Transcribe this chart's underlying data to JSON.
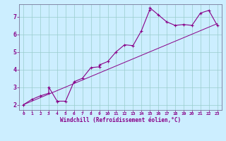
{
  "xlabel": "Windchill (Refroidissement éolien,°C)",
  "background_color": "#cceeff",
  "line_color": "#880088",
  "xlim": [
    -0.5,
    23.5
  ],
  "ylim": [
    1.7,
    7.7
  ],
  "xticks": [
    0,
    1,
    2,
    3,
    4,
    5,
    6,
    7,
    8,
    9,
    10,
    11,
    12,
    13,
    14,
    15,
    16,
    17,
    18,
    19,
    20,
    21,
    22,
    23
  ],
  "yticks": [
    2,
    3,
    4,
    5,
    6,
    7
  ],
  "grid_color": "#99cccc",
  "main_line_x": [
    0,
    1,
    2,
    3,
    3,
    4,
    4,
    5,
    6,
    7,
    8,
    9,
    9,
    10,
    11,
    12,
    13,
    14,
    15,
    15,
    16,
    17,
    18,
    19,
    20,
    21,
    22,
    23
  ],
  "main_line_y": [
    2.0,
    2.3,
    2.5,
    2.65,
    3.0,
    2.2,
    2.2,
    2.2,
    3.3,
    3.5,
    4.1,
    4.15,
    4.25,
    4.45,
    5.0,
    5.4,
    5.35,
    6.2,
    7.4,
    7.5,
    7.1,
    6.7,
    6.5,
    6.55,
    6.5,
    7.2,
    7.35,
    6.5
  ],
  "diag_line_x": [
    0,
    23
  ],
  "diag_line_y": [
    2.0,
    6.6
  ]
}
